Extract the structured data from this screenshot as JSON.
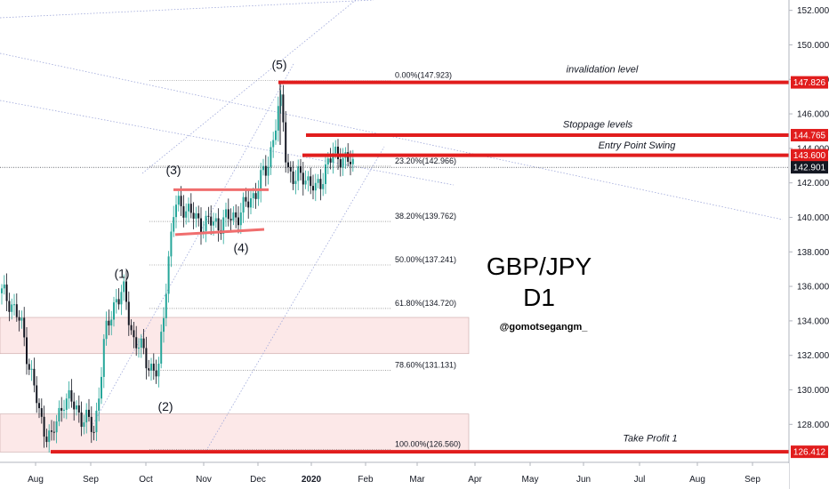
{
  "chart_data": {
    "type": "candlestick",
    "title": "GBP/JPY",
    "subtitle": "D1",
    "credit": "@gomotsegangm_",
    "x_ticks": [
      "Aug",
      "Sep",
      "Oct",
      "Nov",
      "Dec",
      "2020",
      "Feb",
      "Mar",
      "Apr",
      "May",
      "Jun",
      "Jul",
      "Aug",
      "Sep"
    ],
    "y_ticks": [
      "128.000",
      "130.000",
      "132.000",
      "134.000",
      "136.000",
      "138.000",
      "140.000",
      "142.000",
      "144.000",
      "146.000",
      "148.000",
      "150.000",
      "152.000"
    ],
    "ylim": [
      125.8,
      152.6
    ],
    "price_tags": [
      {
        "label": "147.826",
        "value": 147.826,
        "color": "#e11d1d"
      },
      {
        "label": "144.765",
        "value": 144.765,
        "color": "#e11d1d"
      },
      {
        "label": "143.600",
        "value": 143.6,
        "color": "#e11d1d"
      },
      {
        "label": "142.901",
        "value": 142.901,
        "color": "#131722"
      },
      {
        "label": "126.412",
        "value": 126.412,
        "color": "#e11d1d"
      }
    ],
    "fib_levels": [
      {
        "label": "0.00%(147.923)",
        "value": 147.923
      },
      {
        "label": "23.20%(142.966)",
        "value": 142.966
      },
      {
        "label": "38.20%(139.762)",
        "value": 139.762
      },
      {
        "label": "50.00%(137.241)",
        "value": 137.241
      },
      {
        "label": "61.80%(134.720)",
        "value": 134.72
      },
      {
        "label": "78.60%(131.131)",
        "value": 131.131
      },
      {
        "label": "100.00%(126.560)",
        "value": 126.56
      }
    ],
    "annotations": [
      {
        "text": "invalidation level",
        "value": 148.4
      },
      {
        "text": "Stoppage levels",
        "value": 145.2
      },
      {
        "text": "Entry Point Swing",
        "value": 144.0
      },
      {
        "text": "Take Profit 1",
        "value": 127.0
      }
    ],
    "waves": [
      {
        "label": "(1)",
        "value": 136.5
      },
      {
        "label": "(2)",
        "value": 128.8
      },
      {
        "label": "(3)",
        "value": 142.5
      },
      {
        "label": "(4)",
        "value": 138.0
      },
      {
        "label": "(5)",
        "value": 148.6
      }
    ],
    "zones": [
      {
        "top": 134.2,
        "bottom": 132.1
      },
      {
        "top": 128.6,
        "bottom": 126.4
      }
    ],
    "colors": {
      "up": "#26a69a",
      "down": "#131722",
      "red": "#e11d1d",
      "pink": "#f06e6e",
      "zone": "#fce8e8",
      "trend": "#9fa8da"
    }
  }
}
